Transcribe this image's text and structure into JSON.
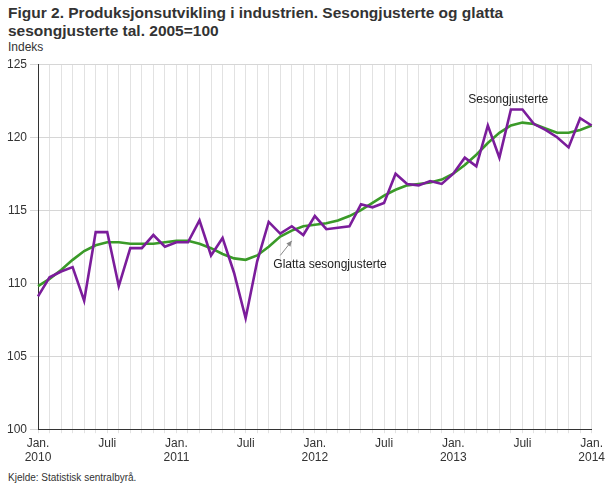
{
  "chart_data": {
    "type": "line",
    "title": "Figur 2. Produksjonsutvikling i industrien. Sesongjusterte og glatta sesongjusterte tal. 2005=100",
    "ylabel": "Indeks",
    "source": "Kjelde: Statistisk sentralbyrå.",
    "annotations": [
      "Sesongjusterte",
      "Glatta sesongjusterte"
    ],
    "categories": [
      "Jan.\n2010",
      null,
      null,
      null,
      null,
      null,
      "Juli",
      null,
      null,
      null,
      null,
      null,
      "Jan.\n2011",
      null,
      null,
      null,
      null,
      null,
      "Juli",
      null,
      null,
      null,
      null,
      null,
      "Jan.\n2012",
      null,
      null,
      null,
      null,
      null,
      "Juli",
      null,
      null,
      null,
      null,
      null,
      "Jan.\n2013",
      null,
      null,
      null,
      null,
      null,
      "Juli",
      null,
      null,
      null,
      null,
      null,
      "Jan.\n2014"
    ],
    "series": [
      {
        "name": "Sesongjusterte",
        "color": "#7b1d9b",
        "values": [
          109.1,
          110.4,
          110.8,
          111.1,
          108.8,
          113.5,
          113.5,
          109.8,
          112.4,
          112.4,
          113.3,
          112.5,
          112.8,
          112.8,
          114.3,
          111.9,
          113.1,
          110.7,
          107.6,
          111.5,
          114.2,
          113.4,
          113.9,
          113.3,
          114.6,
          113.7,
          113.8,
          113.9,
          115.4,
          115.2,
          115.5,
          117.5,
          116.8,
          116.7,
          117.0,
          116.8,
          117.5,
          118.6,
          118.0,
          120.8,
          118.6,
          121.9,
          121.9,
          120.9,
          120.5,
          120.0,
          119.3,
          121.3,
          120.8
        ]
      },
      {
        "name": "Glatta sesongjusterte",
        "color": "#3a9a28",
        "values": [
          109.8,
          110.3,
          110.9,
          111.6,
          112.2,
          112.6,
          112.8,
          112.8,
          112.7,
          112.7,
          112.7,
          112.8,
          112.9,
          112.9,
          112.7,
          112.4,
          112.0,
          111.7,
          111.6,
          111.9,
          112.5,
          113.2,
          113.6,
          113.9,
          114.0,
          114.1,
          114.3,
          114.6,
          115.0,
          115.5,
          116.0,
          116.4,
          116.7,
          116.8,
          116.9,
          117.1,
          117.5,
          118.1,
          118.8,
          119.6,
          120.3,
          120.8,
          121.0,
          120.9,
          120.6,
          120.3,
          120.3,
          120.5,
          120.8
        ]
      }
    ],
    "ylim": [
      100,
      125
    ],
    "yticks": [
      100,
      105,
      110,
      115,
      120,
      125
    ],
    "grid": true
  }
}
